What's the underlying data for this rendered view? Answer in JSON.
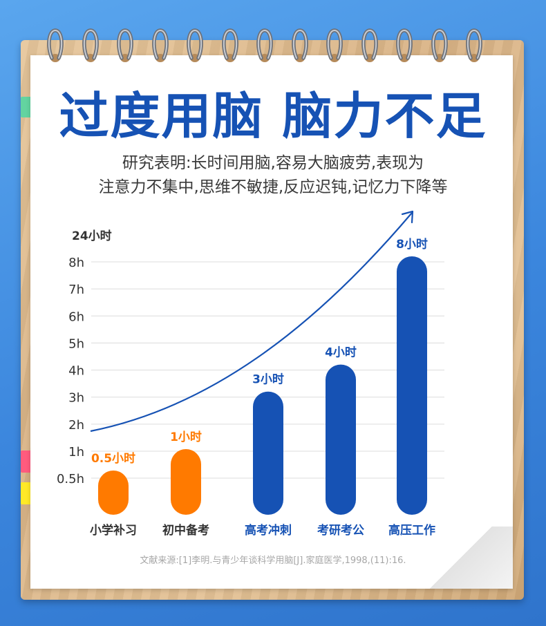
{
  "heading": {
    "title": "过度用脑 脑力不足",
    "line1": "研究表明:长时间用脑,容易大脑疲劳,表现为",
    "line2": "注意力不集中,思维不敏捷,反应迟钝,记忆力下降等"
  },
  "source": "文献来源:[1]李明.与青少年谈科学用脑[J].家庭医学,1998,(11):16.",
  "colors": {
    "blue": "#1652b4",
    "orange": "#ff7a00",
    "background": "#3b86dd",
    "tab_green": "#63d4a0",
    "tab_pink": "#ff5b7e",
    "tab_yellow": "#ffe927"
  },
  "chart_data": {
    "type": "bar",
    "ylabel": "24小时",
    "y_ticks": [
      "0.5h",
      "1h",
      "2h",
      "3h",
      "4h",
      "5h",
      "6h",
      "7h",
      "8h"
    ],
    "categories": [
      "小学补习",
      "初中备考",
      "高考冲刺",
      "考研考公",
      "高压工作"
    ],
    "values": [
      0.5,
      1,
      3,
      4,
      8
    ],
    "data_labels": [
      "0.5小时",
      "1小时",
      "3小时",
      "4小时",
      "8小时"
    ],
    "bar_colors": [
      "#ff7a00",
      "#ff7a00",
      "#1652b4",
      "#1652b4",
      "#1652b4"
    ],
    "label_colors": [
      "#ff7a00",
      "#ff7a00",
      "#1652b4",
      "#1652b4",
      "#1652b4"
    ],
    "category_colors": [
      "#333333",
      "#333333",
      "#1652b4",
      "#1652b4",
      "#1652b4"
    ],
    "ylim": [
      0,
      8
    ],
    "grid": true,
    "trend_arrow": true
  }
}
